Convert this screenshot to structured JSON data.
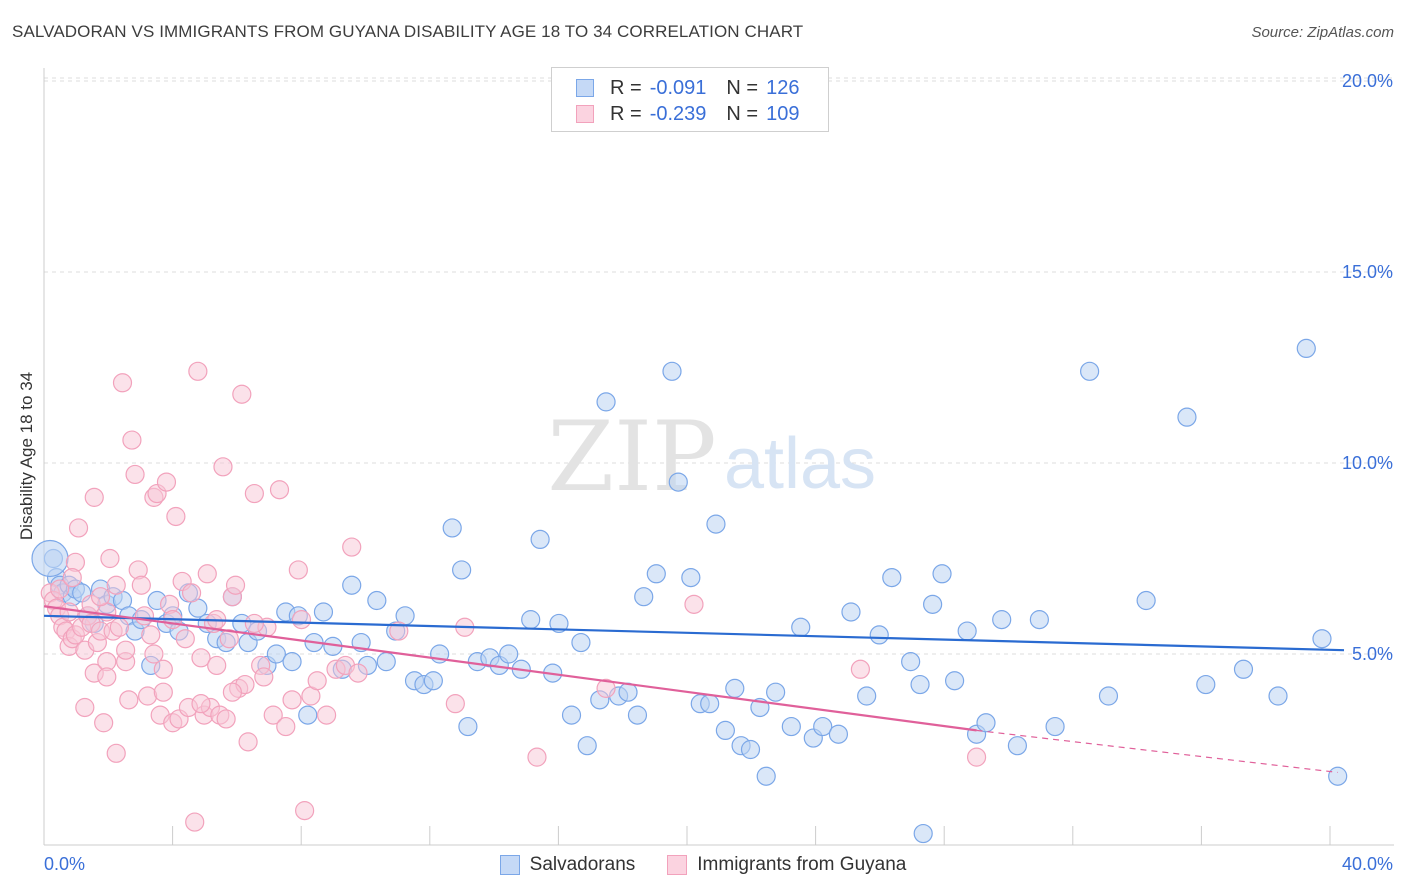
{
  "header": {
    "title": "SALVADORAN VS IMMIGRANTS FROM GUYANA DISABILITY AGE 18 TO 34 CORRELATION CHART",
    "source": "Source: ZipAtlas.com"
  },
  "watermark": {
    "zip": "ZIP",
    "atlas": "atlas"
  },
  "legend": {
    "rows": [
      {
        "r_label": "R = ",
        "r_value": "-0.091",
        "n_label": "N = ",
        "n_value": "126",
        "color": "#7ba7e8"
      },
      {
        "r_label": "R = ",
        "r_value": "-0.239",
        "n_label": "N = ",
        "n_value": "109",
        "color": "#f2a2bc"
      }
    ]
  },
  "bottom_legend": {
    "items": [
      {
        "label": "Salvadorans",
        "color": "#7ba7e8"
      },
      {
        "label": "Immigrants from Guyana",
        "color": "#f2a2bc"
      }
    ]
  },
  "chart_data": {
    "type": "scatter",
    "title": "SALVADORAN VS IMMIGRANTS FROM GUYANA DISABILITY AGE 18 TO 34 CORRELATION CHART",
    "xlabel": "",
    "ylabel": "Disability Age 18 to 34",
    "xlim": [
      0,
      40
    ],
    "ylim": [
      0,
      21
    ],
    "x_tick_labels": [
      "0.0%",
      "40.0%"
    ],
    "y_ticks": [
      5,
      10,
      15,
      20
    ],
    "y_tick_labels": [
      "5.0%",
      "10.0%",
      "15.0%",
      "20.0%"
    ],
    "grid": true,
    "series": [
      {
        "name": "Salvadorans",
        "color": "#7ba7e8",
        "line_color": "#2a6bd1",
        "trend": {
          "x": [
            0,
            40
          ],
          "y": [
            6.0,
            5.1
          ]
        },
        "points": [
          [
            0.3,
            7.5
          ],
          [
            0.4,
            7.0
          ],
          [
            0.5,
            6.8
          ],
          [
            0.6,
            6.6
          ],
          [
            0.8,
            6.8
          ],
          [
            0.9,
            6.5
          ],
          [
            1.0,
            6.7
          ],
          [
            1.2,
            6.6
          ],
          [
            1.4,
            6.0
          ],
          [
            1.6,
            5.8
          ],
          [
            1.8,
            6.7
          ],
          [
            2.0,
            6.3
          ],
          [
            2.2,
            6.5
          ],
          [
            2.5,
            6.4
          ],
          [
            2.7,
            6.0
          ],
          [
            2.9,
            5.6
          ],
          [
            3.1,
            5.9
          ],
          [
            3.4,
            4.7
          ],
          [
            3.6,
            6.4
          ],
          [
            3.9,
            5.8
          ],
          [
            4.1,
            6.0
          ],
          [
            4.3,
            5.6
          ],
          [
            4.6,
            6.6
          ],
          [
            4.9,
            6.2
          ],
          [
            5.2,
            5.8
          ],
          [
            5.5,
            5.4
          ],
          [
            5.8,
            5.3
          ],
          [
            6.0,
            6.5
          ],
          [
            6.3,
            5.8
          ],
          [
            6.5,
            5.3
          ],
          [
            6.8,
            5.6
          ],
          [
            7.1,
            4.7
          ],
          [
            7.4,
            5.0
          ],
          [
            7.7,
            6.1
          ],
          [
            7.9,
            4.8
          ],
          [
            8.1,
            6.0
          ],
          [
            8.4,
            3.4
          ],
          [
            8.6,
            5.3
          ],
          [
            8.9,
            6.1
          ],
          [
            9.2,
            5.2
          ],
          [
            9.5,
            4.6
          ],
          [
            9.8,
            6.8
          ],
          [
            10.1,
            5.3
          ],
          [
            10.3,
            4.7
          ],
          [
            10.6,
            6.4
          ],
          [
            10.9,
            4.8
          ],
          [
            11.2,
            5.6
          ],
          [
            11.5,
            6.0
          ],
          [
            11.8,
            4.3
          ],
          [
            12.1,
            4.2
          ],
          [
            12.4,
            4.3
          ],
          [
            12.6,
            5.0
          ],
          [
            13.0,
            8.3
          ],
          [
            13.3,
            7.2
          ],
          [
            13.5,
            3.1
          ],
          [
            13.8,
            4.8
          ],
          [
            14.2,
            4.9
          ],
          [
            14.5,
            4.7
          ],
          [
            14.8,
            5.0
          ],
          [
            15.2,
            4.6
          ],
          [
            15.5,
            5.9
          ],
          [
            15.8,
            8.0
          ],
          [
            16.2,
            4.5
          ],
          [
            16.4,
            5.8
          ],
          [
            16.8,
            3.4
          ],
          [
            17.1,
            5.3
          ],
          [
            17.3,
            2.6
          ],
          [
            17.7,
            3.8
          ],
          [
            17.9,
            11.6
          ],
          [
            18.3,
            3.9
          ],
          [
            18.6,
            4.0
          ],
          [
            18.9,
            3.4
          ],
          [
            19.1,
            6.5
          ],
          [
            19.5,
            7.1
          ],
          [
            20.0,
            12.4
          ],
          [
            20.2,
            9.5
          ],
          [
            20.6,
            7.0
          ],
          [
            20.9,
            3.7
          ],
          [
            21.2,
            3.7
          ],
          [
            21.4,
            8.4
          ],
          [
            21.7,
            3.0
          ],
          [
            22.0,
            4.1
          ],
          [
            22.2,
            2.6
          ],
          [
            22.5,
            2.5
          ],
          [
            22.8,
            3.6
          ],
          [
            23.0,
            1.8
          ],
          [
            23.3,
            4.0
          ],
          [
            23.8,
            3.1
          ],
          [
            24.1,
            5.7
          ],
          [
            24.5,
            2.8
          ],
          [
            24.8,
            3.1
          ],
          [
            25.3,
            2.9
          ],
          [
            25.7,
            6.1
          ],
          [
            26.2,
            3.9
          ],
          [
            26.6,
            5.5
          ],
          [
            27.0,
            7.0
          ],
          [
            27.6,
            4.8
          ],
          [
            27.9,
            4.2
          ],
          [
            28.3,
            6.3
          ],
          [
            28.6,
            7.1
          ],
          [
            29.0,
            4.3
          ],
          [
            29.4,
            5.6
          ],
          [
            29.7,
            2.9
          ],
          [
            30.0,
            3.2
          ],
          [
            30.5,
            5.9
          ],
          [
            31.0,
            2.6
          ],
          [
            31.7,
            5.9
          ],
          [
            32.2,
            3.1
          ],
          [
            33.3,
            12.4
          ],
          [
            33.9,
            3.9
          ],
          [
            35.1,
            6.4
          ],
          [
            36.4,
            11.2
          ],
          [
            37.0,
            4.2
          ],
          [
            38.2,
            4.6
          ],
          [
            39.3,
            3.9
          ],
          [
            40.2,
            13.0
          ],
          [
            40.7,
            5.4
          ],
          [
            41.2,
            1.8
          ],
          [
            28.0,
            0.3
          ]
        ]
      },
      {
        "name": "Immigrants from Guyana",
        "color": "#f2a2bc",
        "line_color": "#e0609a",
        "trend": {
          "x": [
            0,
            29.7
          ],
          "y": [
            6.25,
            3.0
          ]
        },
        "trend_dashed": {
          "x": [
            29.7,
            41.2
          ],
          "y": [
            3.0,
            1.9
          ]
        },
        "points": [
          [
            0.2,
            6.6
          ],
          [
            0.3,
            6.4
          ],
          [
            0.4,
            6.2
          ],
          [
            0.5,
            6.7
          ],
          [
            0.5,
            6.0
          ],
          [
            0.6,
            5.7
          ],
          [
            0.7,
            5.6
          ],
          [
            0.8,
            6.1
          ],
          [
            0.8,
            5.2
          ],
          [
            0.9,
            5.4
          ],
          [
            1.0,
            5.5
          ],
          [
            1.0,
            7.4
          ],
          [
            1.1,
            8.3
          ],
          [
            1.2,
            5.7
          ],
          [
            1.3,
            3.6
          ],
          [
            1.3,
            5.1
          ],
          [
            1.4,
            6.0
          ],
          [
            1.5,
            5.8
          ],
          [
            1.6,
            9.1
          ],
          [
            1.6,
            4.5
          ],
          [
            1.7,
            5.3
          ],
          [
            1.8,
            5.6
          ],
          [
            1.9,
            3.2
          ],
          [
            2.0,
            4.8
          ],
          [
            2.0,
            6.1
          ],
          [
            2.1,
            7.5
          ],
          [
            2.2,
            5.6
          ],
          [
            2.3,
            6.8
          ],
          [
            2.3,
            2.4
          ],
          [
            2.4,
            5.7
          ],
          [
            2.5,
            12.1
          ],
          [
            2.6,
            4.8
          ],
          [
            2.7,
            3.8
          ],
          [
            2.8,
            10.6
          ],
          [
            2.9,
            9.7
          ],
          [
            3.0,
            7.2
          ],
          [
            3.1,
            6.8
          ],
          [
            3.2,
            6.0
          ],
          [
            3.3,
            3.9
          ],
          [
            3.4,
            5.5
          ],
          [
            3.5,
            9.1
          ],
          [
            3.6,
            9.2
          ],
          [
            3.7,
            3.4
          ],
          [
            3.8,
            4.6
          ],
          [
            3.9,
            9.5
          ],
          [
            4.0,
            6.3
          ],
          [
            4.1,
            3.2
          ],
          [
            4.2,
            8.6
          ],
          [
            4.3,
            3.3
          ],
          [
            4.4,
            6.9
          ],
          [
            4.5,
            5.4
          ],
          [
            4.6,
            3.6
          ],
          [
            4.7,
            6.6
          ],
          [
            4.8,
            0.6
          ],
          [
            4.9,
            12.4
          ],
          [
            5.0,
            4.9
          ],
          [
            5.1,
            3.4
          ],
          [
            5.2,
            7.1
          ],
          [
            5.3,
            3.6
          ],
          [
            5.4,
            5.8
          ],
          [
            5.5,
            4.7
          ],
          [
            5.6,
            3.4
          ],
          [
            5.7,
            9.9
          ],
          [
            5.8,
            3.3
          ],
          [
            5.9,
            5.4
          ],
          [
            6.0,
            6.5
          ],
          [
            6.1,
            6.8
          ],
          [
            6.2,
            4.1
          ],
          [
            6.3,
            11.8
          ],
          [
            6.4,
            4.2
          ],
          [
            6.5,
            2.7
          ],
          [
            6.7,
            9.2
          ],
          [
            6.9,
            4.7
          ],
          [
            7.1,
            5.7
          ],
          [
            7.3,
            3.4
          ],
          [
            7.5,
            9.3
          ],
          [
            7.7,
            3.1
          ],
          [
            7.9,
            3.8
          ],
          [
            8.1,
            7.2
          ],
          [
            8.3,
            0.9
          ],
          [
            8.5,
            3.9
          ],
          [
            8.7,
            4.3
          ],
          [
            9.0,
            3.4
          ],
          [
            9.3,
            4.6
          ],
          [
            9.6,
            4.7
          ],
          [
            9.8,
            7.8
          ],
          [
            10.0,
            4.5
          ],
          [
            11.3,
            5.6
          ],
          [
            13.1,
            3.7
          ],
          [
            13.4,
            5.7
          ],
          [
            15.7,
            2.3
          ],
          [
            17.9,
            4.1
          ],
          [
            20.7,
            6.3
          ],
          [
            26.0,
            4.6
          ],
          [
            29.7,
            2.3
          ],
          [
            1.5,
            6.3
          ],
          [
            2.6,
            5.1
          ],
          [
            3.8,
            4.0
          ],
          [
            5.5,
            5.9
          ],
          [
            7.0,
            4.4
          ],
          [
            8.2,
            5.9
          ],
          [
            4.1,
            5.9
          ],
          [
            0.9,
            7.0
          ],
          [
            1.8,
            6.5
          ],
          [
            6.7,
            5.8
          ],
          [
            2.0,
            4.4
          ],
          [
            3.5,
            5.0
          ],
          [
            5.0,
            3.7
          ],
          [
            6.0,
            4.0
          ]
        ]
      }
    ]
  }
}
